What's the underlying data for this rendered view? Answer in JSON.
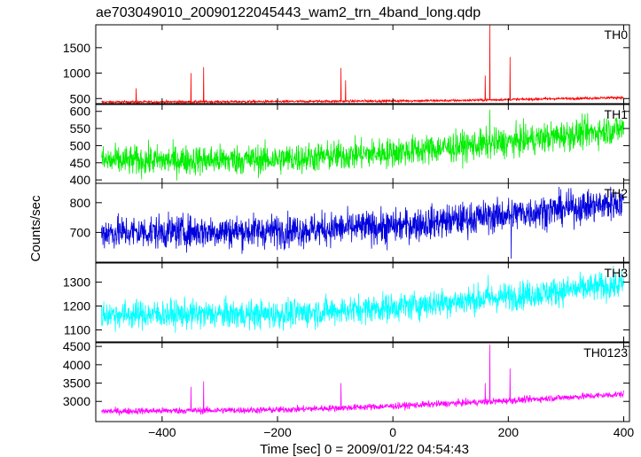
{
  "chart_data": {
    "type": "line",
    "title": "ae703049010_20090122045443_wam2_trn_4band_long.qdp",
    "ylabel": "Counts/sec",
    "xlabel": "Time [sec] 0 = 2009/01/22 04:54:43",
    "xlim": [
      -515,
      410
    ],
    "x_ticks": [
      -400,
      -200,
      0,
      200,
      400
    ],
    "x_tick_labels": [
      "−400",
      "−200",
      "0",
      "200",
      "400"
    ],
    "grid": false,
    "panels": [
      {
        "name": "TH0",
        "color": "#ff0000",
        "ylim": [
          400,
          1950
        ],
        "y_ticks": [
          500,
          1000,
          1500
        ],
        "trend": [
          [
            -505,
            430
          ],
          [
            -200,
            440
          ],
          [
            100,
            460
          ],
          [
            400,
            520
          ]
        ],
        "noise": 12,
        "spikes": [
          [
            -445,
            700
          ],
          [
            -350,
            1000
          ],
          [
            -328,
            1120
          ],
          [
            -90,
            1100
          ],
          [
            -82,
            860
          ],
          [
            160,
            950
          ],
          [
            168,
            1950
          ],
          [
            203,
            1320
          ]
        ]
      },
      {
        "name": "TH1",
        "color": "#00ee00",
        "ylim": [
          390,
          620
        ],
        "y_ticks": [
          400,
          450,
          500,
          550,
          600
        ],
        "trend": [
          [
            -505,
            455
          ],
          [
            -200,
            460
          ],
          [
            0,
            480
          ],
          [
            200,
            510
          ],
          [
            400,
            550
          ]
        ],
        "noise": 22,
        "spikes": [
          [
            168,
            605
          ]
        ]
      },
      {
        "name": "TH2",
        "color": "#0000dd",
        "ylim": [
          600,
          865
        ],
        "y_ticks": [
          700,
          800
        ],
        "trend": [
          [
            -505,
            700
          ],
          [
            -200,
            705
          ],
          [
            0,
            720
          ],
          [
            200,
            760
          ],
          [
            400,
            800
          ]
        ],
        "noise": 28,
        "spikes": [
          [
            -10,
            640
          ],
          [
            205,
            612
          ]
        ]
      },
      {
        "name": "TH3",
        "color": "#00ffff",
        "ylim": [
          1050,
          1380
        ],
        "y_ticks": [
          1100,
          1200,
          1300
        ],
        "trend": [
          [
            -505,
            1165
          ],
          [
            -200,
            1165
          ],
          [
            0,
            1195
          ],
          [
            200,
            1240
          ],
          [
            400,
            1290
          ]
        ],
        "noise": 30,
        "spikes": [
          [
            165,
            1330
          ]
        ]
      },
      {
        "name": "TH0123",
        "color": "#ff00ff",
        "ylim": [
          2450,
          4600
        ],
        "y_ticks": [
          3000,
          3500,
          4000,
          4500
        ],
        "trend": [
          [
            -505,
            2730
          ],
          [
            -200,
            2770
          ],
          [
            0,
            2870
          ],
          [
            200,
            3020
          ],
          [
            400,
            3200
          ]
        ],
        "noise": 45,
        "spikes": [
          [
            -350,
            3400
          ],
          [
            -328,
            3550
          ],
          [
            -90,
            3500
          ],
          [
            160,
            3500
          ],
          [
            168,
            4550
          ],
          [
            203,
            3900
          ]
        ]
      }
    ]
  }
}
